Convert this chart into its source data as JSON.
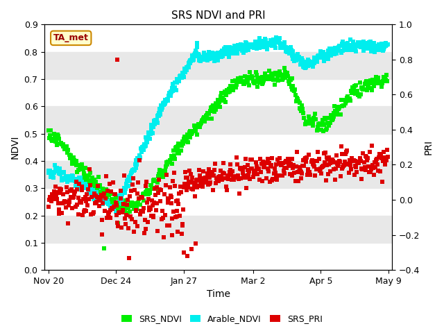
{
  "title": "SRS NDVI and PRI",
  "ylabel_left": "NDVI",
  "ylabel_right": "PRI",
  "xlabel": "Time",
  "ylim_left": [
    0.0,
    0.9
  ],
  "ylim_right": [
    -0.4,
    1.0
  ],
  "yticks_left": [
    0.0,
    0.1,
    0.2,
    0.3,
    0.4,
    0.5,
    0.6,
    0.7,
    0.8,
    0.9
  ],
  "yticks_right": [
    -0.4,
    -0.2,
    0.0,
    0.2,
    0.4,
    0.6,
    0.8,
    1.0
  ],
  "xtick_labels": [
    "Nov 20",
    "Dec 24",
    "Jan 27",
    "Mar 2",
    "Apr 5",
    "May 9"
  ],
  "xtick_days": [
    0,
    34,
    68,
    103,
    137,
    171
  ],
  "color_srs_ndvi": "#00ee00",
  "color_arable_ndvi": "#00eeee",
  "color_srs_pri": "#dd0000",
  "annotation_text": "TA_met",
  "annotation_facecolor": "#ffffcc",
  "annotation_edgecolor": "#cc8800",
  "annotation_textcolor": "#990000",
  "bg_band_color": "#e8e8e8",
  "marker_size": 18,
  "legend_labels": [
    "SRS_NDVI",
    "Arable_NDVI",
    "SRS_PRI"
  ]
}
